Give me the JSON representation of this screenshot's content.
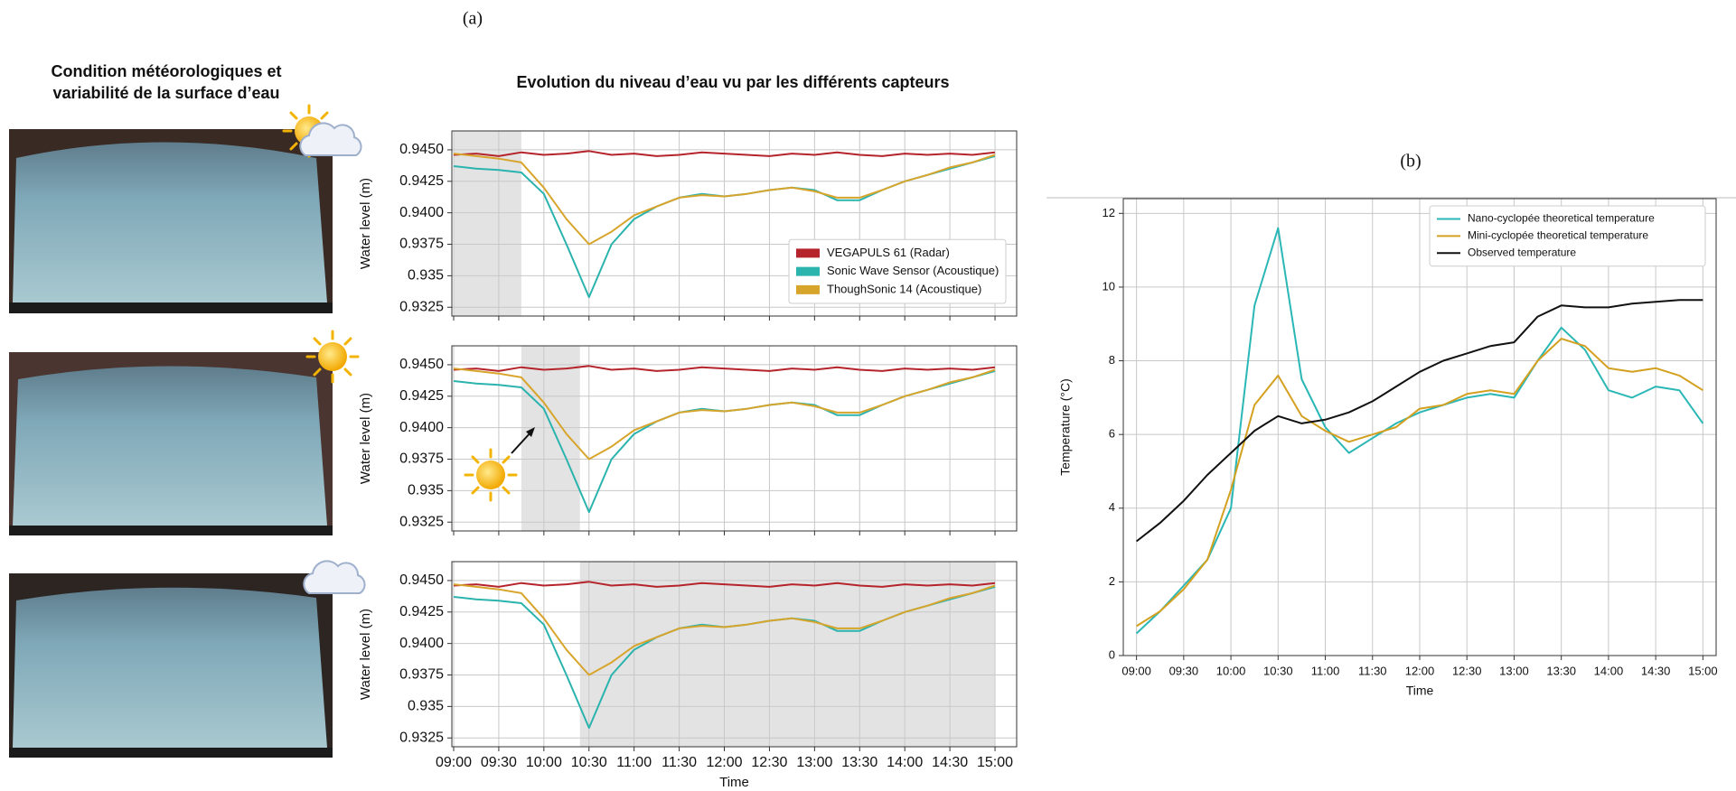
{
  "panel_label_a": "(a)",
  "photos_heading": [
    "Condition météorologiques et",
    "variabilité de la surface d’eau"
  ],
  "chart_data": [
    {
      "type": "line",
      "panel_label": "(a)",
      "title": "Evolution du niveau d’eau vu par les différents capteurs",
      "xlabel": "Time",
      "ylabel": "Water level (m)",
      "x": [
        9,
        9.25,
        9.5,
        9.75,
        10,
        10.25,
        10.5,
        10.75,
        11,
        11.25,
        11.5,
        11.75,
        12,
        12.25,
        12.5,
        12.75,
        13,
        13.25,
        13.5,
        13.75,
        14,
        14.25,
        14.5,
        14.75,
        15
      ],
      "xlim": [
        8.98,
        15.24
      ],
      "xticks": [
        {
          "value": 9,
          "label": "09:00"
        },
        {
          "value": 9.5,
          "label": "09:30"
        },
        {
          "value": 10,
          "label": "10:00"
        },
        {
          "value": 10.5,
          "label": "10:30"
        },
        {
          "value": 11,
          "label": "11:00"
        },
        {
          "value": 11.5,
          "label": "11:30"
        },
        {
          "value": 12,
          "label": "12:00"
        },
        {
          "value": 12.5,
          "label": "12:30"
        },
        {
          "value": 13,
          "label": "13:00"
        },
        {
          "value": 13.5,
          "label": "13:30"
        },
        {
          "value": 14,
          "label": "14:00"
        },
        {
          "value": 14.5,
          "label": "14:30"
        },
        {
          "value": 15,
          "label": "15:00"
        }
      ],
      "ylim": [
        0.9318,
        0.9465
      ],
      "yticks": [
        0.9325,
        0.935,
        0.9375,
        {
          "value": 0.94,
          "label": "0.9400"
        },
        0.9425,
        {
          "value": 0.945,
          "label": "0.9450"
        }
      ],
      "grid": true,
      "legend": "lower right",
      "panels": [
        {
          "shade": [
            9,
            9.75
          ]
        },
        {
          "shade": [
            9.75,
            10.4
          ]
        },
        {
          "shade": [
            10.4,
            15
          ]
        }
      ],
      "series": [
        {
          "name": "VEGAPULS 61 (Radar)",
          "color": "#b5242b",
          "values": [
            0.9446,
            0.9447,
            0.9445,
            0.9448,
            0.9446,
            0.9447,
            0.9449,
            0.9446,
            0.9447,
            0.9445,
            0.9446,
            0.9448,
            0.9447,
            0.9446,
            0.9445,
            0.9447,
            0.9446,
            0.9448,
            0.9446,
            0.9445,
            0.9447,
            0.9446,
            0.9447,
            0.9446,
            0.9448
          ]
        },
        {
          "name": "Sonic Wave Sensor (Acoustique)",
          "color": "#2bb3ad",
          "values": [
            0.9437,
            0.9435,
            0.9434,
            0.9432,
            0.9415,
            0.9375,
            0.9333,
            0.9375,
            0.9395,
            0.9405,
            0.9412,
            0.9415,
            0.9413,
            0.9415,
            0.9418,
            0.942,
            0.9418,
            0.941,
            0.941,
            0.9418,
            0.9425,
            0.943,
            0.9435,
            0.944,
            0.9445
          ]
        },
        {
          "name": "ThoughSonic 14 (Acoustique)",
          "color": "#d8a52c",
          "values": [
            0.9447,
            0.9445,
            0.9443,
            0.944,
            0.942,
            0.9395,
            0.9375,
            0.9385,
            0.9398,
            0.9405,
            0.9412,
            0.9414,
            0.9413,
            0.9415,
            0.9418,
            0.942,
            0.9417,
            0.9412,
            0.9412,
            0.9418,
            0.9425,
            0.943,
            0.9436,
            0.944,
            0.9446
          ]
        }
      ]
    },
    {
      "type": "line",
      "panel_label": "(b)",
      "xlabel": "Time",
      "ylabel": "Temperature (°C)",
      "x": [
        9,
        9.25,
        9.5,
        9.75,
        10,
        10.25,
        10.5,
        10.75,
        11,
        11.25,
        11.5,
        11.75,
        12,
        12.25,
        12.5,
        12.75,
        13,
        13.25,
        13.5,
        13.75,
        14,
        14.25,
        14.5,
        14.75,
        15
      ],
      "xlim": [
        8.86,
        15.14
      ],
      "xticks": [
        {
          "value": 9,
          "label": "09:00"
        },
        {
          "value": 9.5,
          "label": "09:30"
        },
        {
          "value": 10,
          "label": "10:00"
        },
        {
          "value": 10.5,
          "label": "10:30"
        },
        {
          "value": 11,
          "label": "11:00"
        },
        {
          "value": 11.5,
          "label": "11:30"
        },
        {
          "value": 12,
          "label": "12:00"
        },
        {
          "value": 12.5,
          "label": "12:30"
        },
        {
          "value": 13,
          "label": "13:00"
        },
        {
          "value": 13.5,
          "label": "13:30"
        },
        {
          "value": 14,
          "label": "14:00"
        },
        {
          "value": 14.5,
          "label": "14:30"
        },
        {
          "value": 15,
          "label": "15:00"
        }
      ],
      "ylim": [
        0,
        12.4
      ],
      "yticks": [
        0,
        2,
        4,
        6,
        8,
        10,
        12
      ],
      "grid": true,
      "legend": "upper right",
      "series": [
        {
          "name": "Nano-cyclopée theoretical temperature",
          "color": "#2ab7b5",
          "values": [
            0.6,
            1.2,
            1.9,
            2.6,
            4.0,
            9.5,
            11.6,
            7.5,
            6.2,
            5.5,
            5.9,
            6.3,
            6.6,
            6.8,
            7.0,
            7.1,
            7.0,
            8.0,
            8.9,
            8.3,
            7.2,
            7.0,
            7.3,
            7.2,
            6.3
          ]
        },
        {
          "name": "Mini-cyclopée theoretical temperature",
          "color": "#d4a020",
          "values": [
            0.8,
            1.2,
            1.8,
            2.6,
            4.5,
            6.8,
            7.6,
            6.5,
            6.1,
            5.8,
            6.0,
            6.2,
            6.7,
            6.8,
            7.1,
            7.2,
            7.1,
            8.0,
            8.6,
            8.4,
            7.8,
            7.7,
            7.8,
            7.6,
            7.2
          ]
        },
        {
          "name": "Observed temperature",
          "color": "#111111",
          "values": [
            3.1,
            3.6,
            4.2,
            4.9,
            5.5,
            6.1,
            6.5,
            6.3,
            6.4,
            6.6,
            6.9,
            7.3,
            7.7,
            8.0,
            8.2,
            8.4,
            8.5,
            9.2,
            9.5,
            9.45,
            9.45,
            9.55,
            9.6,
            9.65,
            9.65
          ]
        }
      ]
    }
  ]
}
